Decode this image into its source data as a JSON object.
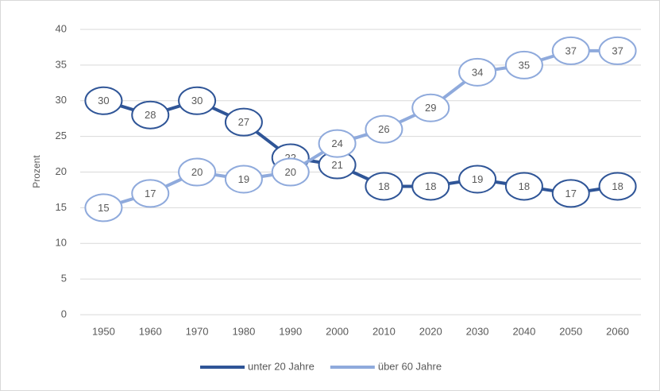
{
  "chart_data": {
    "type": "line",
    "y_label": "Prozent",
    "categories": [
      "1950",
      "1960",
      "1970",
      "1980",
      "1990",
      "2000",
      "2010",
      "2020",
      "2030",
      "2040",
      "2050",
      "2060"
    ],
    "series": [
      {
        "name": "unter 20 Jahre",
        "color": "#2f5597",
        "values": [
          30,
          28,
          30,
          27,
          22,
          21,
          18,
          18,
          19,
          18,
          17,
          18
        ]
      },
      {
        "name": "über 60 Jahre",
        "color": "#8faadc",
        "values": [
          15,
          17,
          20,
          19,
          20,
          24,
          26,
          29,
          34,
          35,
          37,
          37
        ]
      }
    ],
    "ylim": [
      0,
      40
    ],
    "yticks": [
      0,
      5,
      10,
      15,
      20,
      25,
      30,
      35,
      40
    ],
    "grid": true,
    "legend": "bottom",
    "data_labels": true
  }
}
